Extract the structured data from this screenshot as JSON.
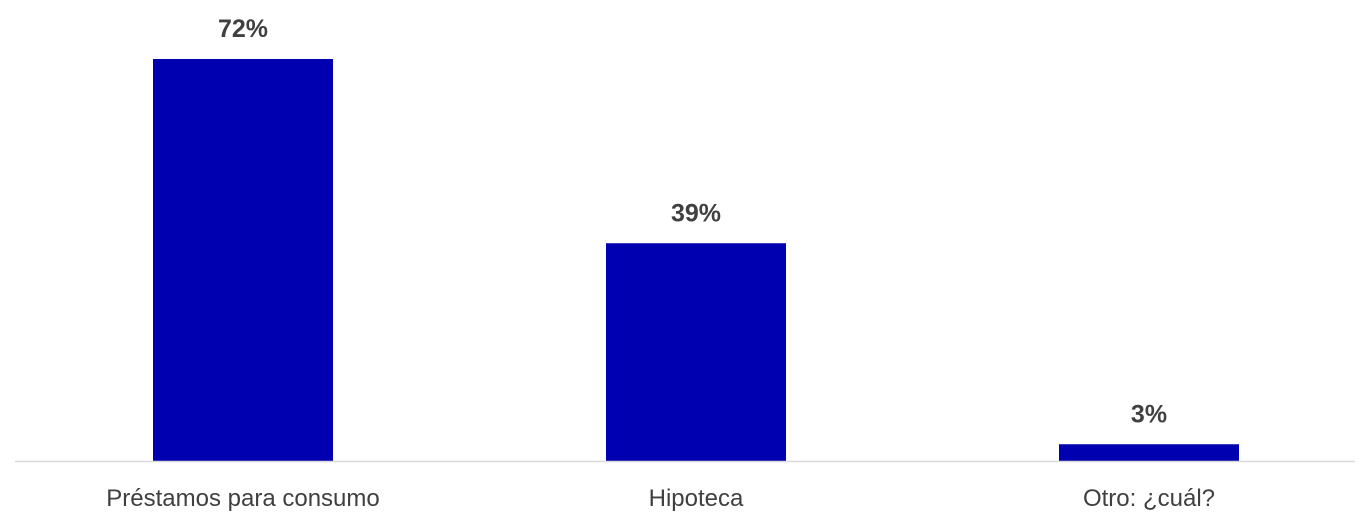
{
  "chart_data": {
    "type": "bar",
    "title": "",
    "xlabel": "",
    "ylabel": "",
    "categories": [
      "Préstamos para consumo",
      "Hipoteca",
      "Otro: ¿cuál?"
    ],
    "values": [
      72,
      39,
      3
    ],
    "value_labels": [
      "72%",
      "39%",
      "3%"
    ],
    "ylim": [
      0,
      72
    ],
    "grid": false,
    "legend": "none",
    "bar_color": "#0000B0",
    "axis_color": "#D9D9D9",
    "text_color": "#404040"
  }
}
